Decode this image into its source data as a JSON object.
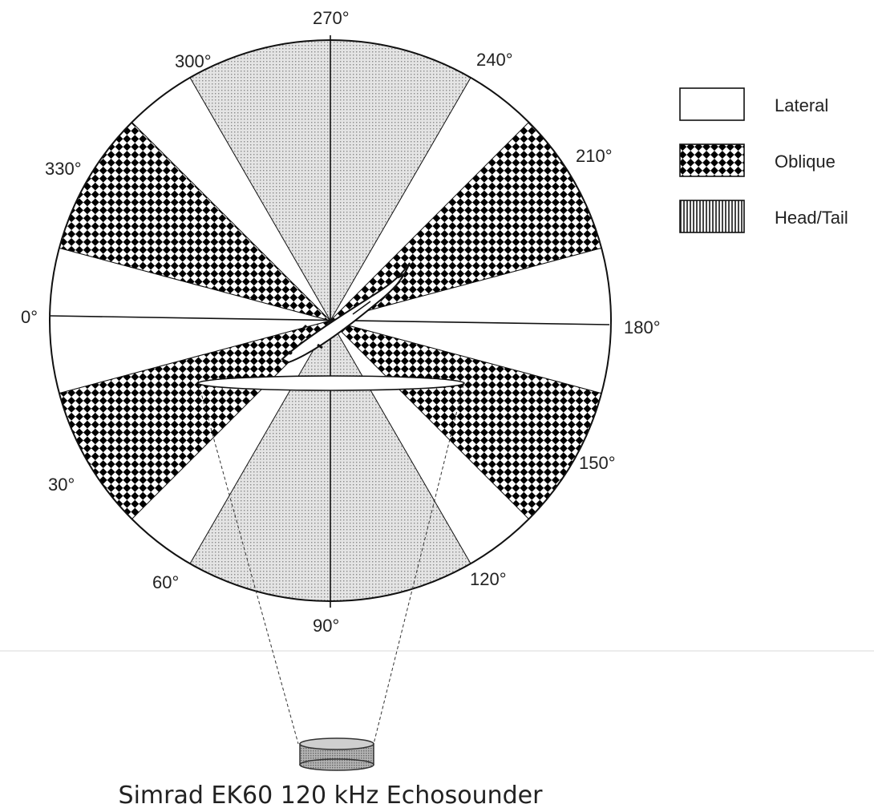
{
  "diagram": {
    "angle_labels": [
      "0°",
      "30°",
      "60°",
      "90°",
      "120°",
      "150°",
      "180°",
      "210°",
      "240°",
      "270°",
      "300°",
      "330°"
    ],
    "sectors": [
      {
        "center_deg": 0,
        "type": "Lateral"
      },
      {
        "center_deg": 30,
        "type": "Oblique"
      },
      {
        "center_deg": 90,
        "type": "Head/Tail"
      },
      {
        "center_deg": 150,
        "type": "Oblique"
      },
      {
        "center_deg": 180,
        "type": "Lateral"
      },
      {
        "center_deg": 210,
        "type": "Oblique"
      },
      {
        "center_deg": 270,
        "type": "Head/Tail"
      },
      {
        "center_deg": 330,
        "type": "Oblique"
      }
    ]
  },
  "legend": {
    "items": [
      {
        "label": "Lateral",
        "pattern": "white"
      },
      {
        "label": "Oblique",
        "pattern": "checker"
      },
      {
        "label": "Head/Tail",
        "pattern": "vertical-stripes"
      }
    ]
  },
  "caption": "Simrad EK60 120 kHz Echosounder",
  "colors": {
    "line": "#111111",
    "dot_fill": "#e2e2e2",
    "transducer": "#9a9a9a"
  }
}
